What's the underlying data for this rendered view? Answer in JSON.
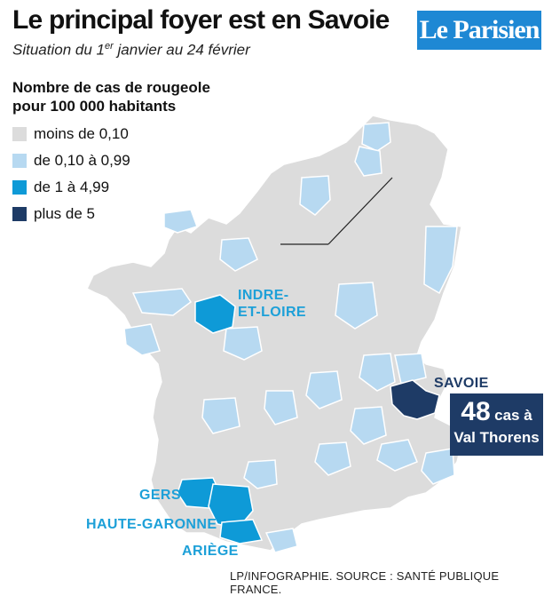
{
  "header": {
    "title": "Le principal foyer est en Savoie",
    "subtitle_before_sup": "Situation du 1",
    "subtitle_sup": "er",
    "subtitle_after_sup": " janvier au 24 février",
    "logo_text": "Le Parisien"
  },
  "legend": {
    "title": "Nombre de cas de rougeole pour 100 000 habitants",
    "items": [
      {
        "label": "moins de 0,10",
        "color": "#dcdcdc"
      },
      {
        "label": "de 0,10 à 0,99",
        "color": "#b7d9f1"
      },
      {
        "label": "de 1 à 4,99",
        "color": "#0e9ad7"
      },
      {
        "label": "plus de 5",
        "color": "#1e3b66"
      }
    ]
  },
  "map": {
    "base_color": "#dcdcdc",
    "border_color": "#ffffff",
    "labels": {
      "indre_et_loire_line1": "INDRE-",
      "indre_et_loire_line2": "ET-LOIRE",
      "savoie": "SAVOIE",
      "gers": "GERS",
      "haute_garonne": "HAUTE-GARONNE",
      "ariege": "ARIÈGE"
    },
    "callout": {
      "number": "48",
      "unit": "cas à",
      "place": "Val Thorens"
    }
  },
  "source": "LP/INFOGRAPHIE.  SOURCE : SANTÉ PUBLIQUE FRANCE."
}
